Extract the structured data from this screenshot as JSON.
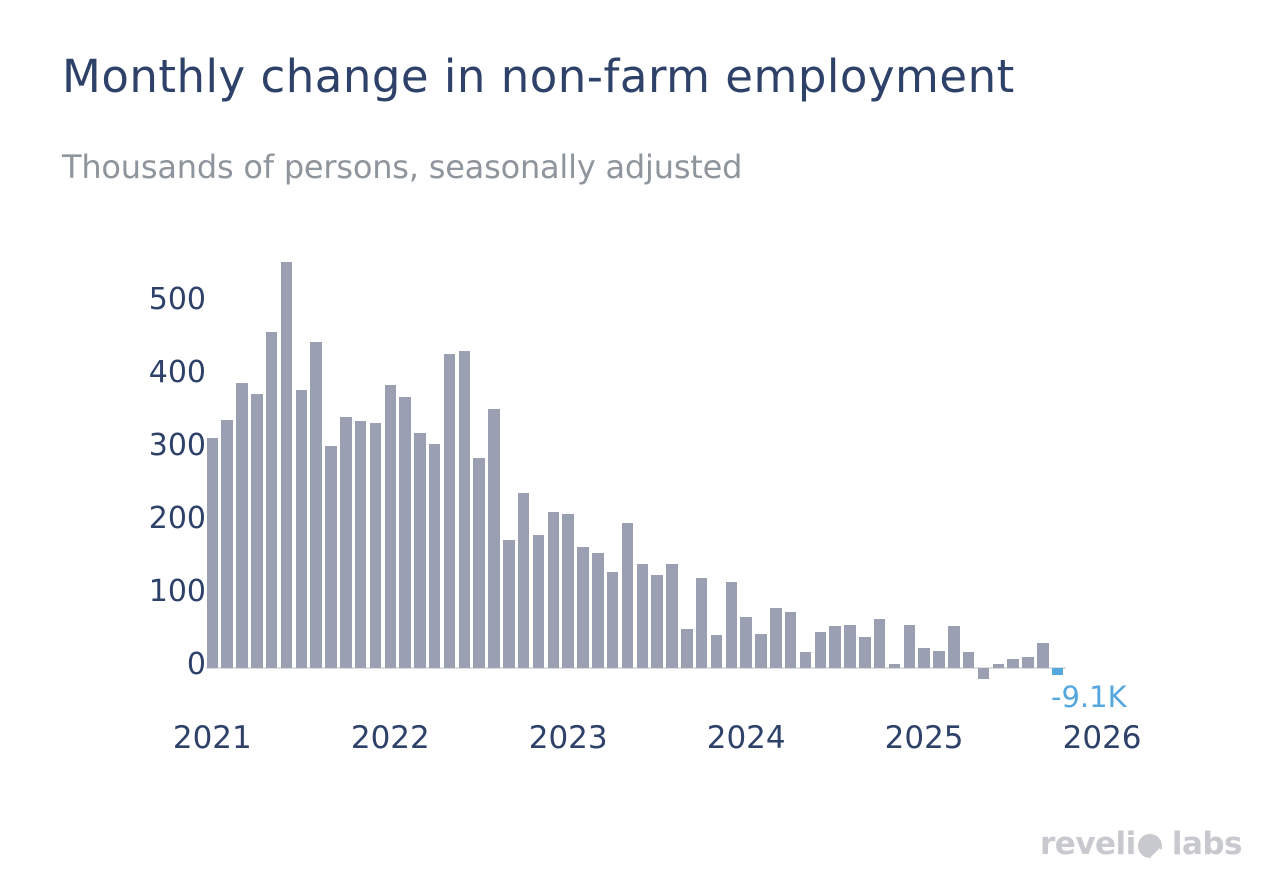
{
  "title": "Monthly change in non-farm employment",
  "subtitle": "Thousands of persons, seasonally adjusted",
  "annotation": {
    "label": "-9.1K",
    "color": "#55a7e0"
  },
  "logo": {
    "text_before_icon": "reveli",
    "icon": "revelio-o-mark",
    "text_after_icon": "labs"
  },
  "colors": {
    "title": "#2e4169",
    "subtitle": "#8f959d",
    "axis_labels": "#2e4169",
    "bar": "#9aa0b2",
    "highlight": "#55a7e0",
    "zero_line": "#dcdee1",
    "logo": "#c7c9ce",
    "background": "#ffffff"
  },
  "chart_data": {
    "type": "bar",
    "title": "Monthly change in non-farm employment",
    "subtitle": "Thousands of persons, seasonally adjusted",
    "ylabel": "Thousands of persons",
    "x": [
      "Jan 2021",
      "Feb 2021",
      "Mar 2021",
      "Apr 2021",
      "May 2021",
      "Jun 2021",
      "Jul 2021",
      "Aug 2021",
      "Sep 2021",
      "Oct 2021",
      "Nov 2021",
      "Dec 2021",
      "Jan 2022",
      "Feb 2022",
      "Mar 2022",
      "Apr 2022",
      "May 2022",
      "Jun 2022",
      "Jul 2022",
      "Aug 2022",
      "Sep 2022",
      "Oct 2022",
      "Nov 2022",
      "Dec 2022",
      "Jan 2023",
      "Feb 2023",
      "Mar 2023",
      "Apr 2023",
      "May 2023",
      "Jun 2023",
      "Jul 2023",
      "Aug 2023",
      "Sep 2023",
      "Oct 2023",
      "Nov 2023",
      "Dec 2023",
      "Jan 2024",
      "Feb 2024",
      "Mar 2024",
      "Apr 2024",
      "May 2024",
      "Jun 2024",
      "Jul 2024",
      "Aug 2024",
      "Sep 2024",
      "Oct 2024",
      "Nov 2024",
      "Dec 2024",
      "Jan 2025",
      "Feb 2025",
      "Mar 2025",
      "Apr 2025",
      "May 2025",
      "Jun 2025",
      "Jul 2025",
      "Aug 2025",
      "Sep 2025",
      "Oct 2025"
    ],
    "values": [
      315,
      340,
      390,
      375,
      460,
      555,
      380,
      446,
      304,
      343,
      338,
      335,
      387,
      371,
      322,
      307,
      429,
      434,
      288,
      354,
      175,
      240,
      182,
      213,
      211,
      165,
      158,
      132,
      199,
      143,
      127,
      143,
      54,
      123,
      45,
      118,
      70,
      47,
      82,
      77,
      22,
      50,
      57,
      59,
      43,
      67,
      5,
      59,
      28,
      24,
      57,
      22,
      -15,
      5,
      12,
      15,
      34,
      -9.1
    ],
    "highlight_last": true,
    "last_value_label": "-9.1K",
    "bar_color": "#9aa0b2",
    "highlight_color": "#55a7e0",
    "yticks": [
      0,
      100,
      200,
      300,
      400,
      500
    ],
    "xticks": [
      "2021",
      "2022",
      "2023",
      "2024",
      "2025",
      "2026"
    ],
    "ylim": [
      -50,
      570
    ],
    "grid": false,
    "legend": "none"
  }
}
